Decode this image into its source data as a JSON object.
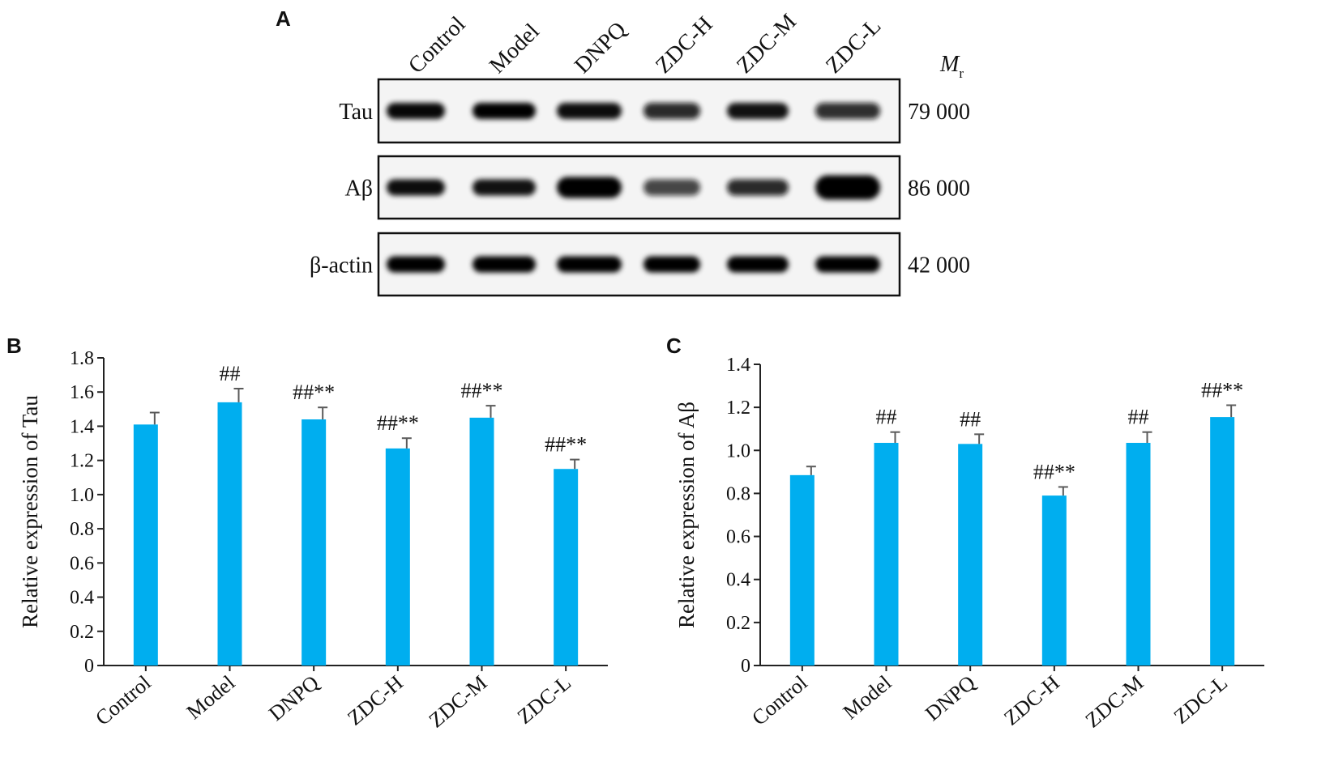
{
  "panels": {
    "a": "A",
    "b": "B",
    "c": "C"
  },
  "blot": {
    "lanes": [
      "Control",
      "Model",
      "DNPQ",
      "ZDC-H",
      "ZDC-M",
      "ZDC-L"
    ],
    "mr_symbol": "M",
    "mr_subscript": "r",
    "rows": [
      {
        "label": "Tau",
        "mw": "79 000",
        "intensity": [
          0.92,
          1.0,
          0.9,
          0.82,
          0.88,
          0.8
        ]
      },
      {
        "label": "Aβ",
        "mw": "86 000",
        "intensity": [
          0.9,
          0.88,
          1.0,
          0.7,
          0.82,
          1.0
        ]
      },
      {
        "label": "β-actin",
        "mw": "42 000",
        "intensity": [
          0.95,
          0.95,
          0.95,
          0.95,
          0.95,
          1.0
        ]
      }
    ]
  },
  "chart_data": [
    {
      "type": "bar",
      "panel": "B",
      "categories": [
        "Control",
        "Model",
        "DNPQ",
        "ZDC-H",
        "ZDC-M",
        "ZDC-L"
      ],
      "values": [
        1.41,
        1.54,
        1.44,
        1.27,
        1.45,
        1.15
      ],
      "errors": [
        0.07,
        0.08,
        0.07,
        0.06,
        0.07,
        0.055
      ],
      "annotations": [
        "",
        "##",
        "##**",
        "##**",
        "##**",
        "##**"
      ],
      "ylabel": "Relative expression of Tau",
      "xlabel": "",
      "ylim": [
        0,
        1.8
      ],
      "yticks": [
        0,
        0.2,
        0.4,
        0.6,
        0.8,
        1.0,
        1.2,
        1.4,
        1.6,
        1.8
      ],
      "ytick_labels": [
        "0",
        "0.2",
        "0.4",
        "0.6",
        "0.8",
        "1.0",
        "1.2",
        "1.4",
        "1.6",
        "1.8"
      ],
      "bar_color": "#00AEEF"
    },
    {
      "type": "bar",
      "panel": "C",
      "categories": [
        "Control",
        "Model",
        "DNPQ",
        "ZDC-H",
        "ZDC-M",
        "ZDC-L"
      ],
      "values": [
        0.885,
        1.035,
        1.03,
        0.79,
        1.035,
        1.155
      ],
      "errors": [
        0.04,
        0.05,
        0.045,
        0.04,
        0.05,
        0.055
      ],
      "annotations": [
        "",
        "##",
        "##",
        "##**",
        "##",
        "##**"
      ],
      "ylabel": "Relative expression of Aβ",
      "xlabel": "",
      "ylim": [
        0,
        1.4
      ],
      "yticks": [
        0,
        0.2,
        0.4,
        0.6,
        0.8,
        1.0,
        1.2,
        1.4
      ],
      "ytick_labels": [
        "0",
        "0.2",
        "0.4",
        "0.6",
        "0.8",
        "1.0",
        "1.2",
        "1.4"
      ],
      "bar_color": "#00AEEF"
    }
  ]
}
